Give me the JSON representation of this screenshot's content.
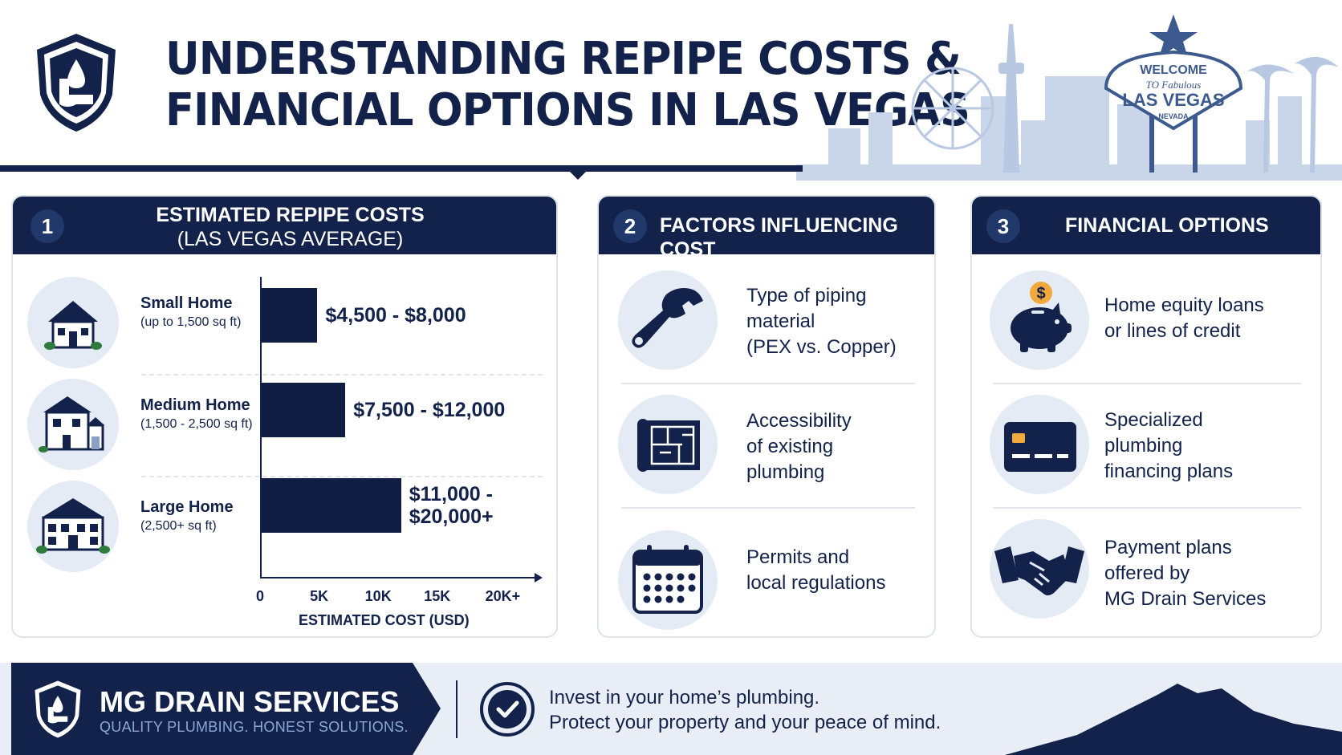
{
  "header": {
    "title_line1": "UNDERSTANDING REPIPE COSTS &",
    "title_line2": "FINANCIAL OPTIONS IN LAS VEGAS",
    "sign": {
      "welcome": "WELCOME",
      "to_fabulous": "TO Fabulous",
      "city": "LAS VEGAS",
      "state": "NEVADA"
    }
  },
  "costs": {
    "number": "1",
    "title_line1": "ESTIMATED REPIPE COSTS",
    "title_line2": "(LAS VEGAS AVERAGE)",
    "homes": [
      {
        "name": "Small Home",
        "size": "(up to 1,500 sq ft)",
        "label_line1": "$4,500 - $8,000",
        "label_line2": "",
        "range": [
          4500,
          8000
        ]
      },
      {
        "name": "Medium Home",
        "size": "(1,500 - 2,500 sq ft)",
        "label_line1": "$7,500 - $12,000",
        "label_line2": "",
        "range": [
          7500,
          12000
        ]
      },
      {
        "name": "Large Home",
        "size": "(2,500+ sq ft)",
        "label_line1": "$11,000 -",
        "label_line2": "$20,000+",
        "range": [
          11000,
          20000
        ]
      }
    ],
    "ticks": [
      "0",
      "5K",
      "10K",
      "15K",
      "20K+"
    ],
    "xlabel": "ESTIMATED COST (USD)"
  },
  "chart_data": {
    "type": "bar",
    "categories": [
      "Small Home",
      "Medium Home",
      "Large Home"
    ],
    "values": [
      8000,
      12000,
      20000
    ],
    "ranges": [
      [
        4500,
        8000
      ],
      [
        7500,
        12000
      ],
      [
        11000,
        20000
      ]
    ],
    "title": "ESTIMATED REPIPE COSTS (LAS VEGAS AVERAGE)",
    "xlabel": "ESTIMATED COST (USD)",
    "ylabel": "",
    "xlim": [
      0,
      20000
    ],
    "orientation": "horizontal"
  },
  "factors": {
    "number": "2",
    "title": "FACTORS INFLUENCING COST",
    "items": [
      {
        "icon": "wrench-icon",
        "lines": [
          "Type of piping",
          "material",
          "(PEX vs. Copper)"
        ]
      },
      {
        "icon": "blueprint-icon",
        "lines": [
          "Accessibility",
          "of existing",
          "plumbing"
        ]
      },
      {
        "icon": "calendar-icon",
        "lines": [
          "Permits and",
          "local regulations"
        ]
      }
    ]
  },
  "financial": {
    "number": "3",
    "title": "FINANCIAL OPTIONS",
    "items": [
      {
        "icon": "piggy-bank-icon",
        "lines": [
          "Home equity loans",
          "or lines of credit"
        ]
      },
      {
        "icon": "credit-card-icon",
        "lines": [
          "Specialized",
          "plumbing",
          "financing plans"
        ]
      },
      {
        "icon": "handshake-icon",
        "lines": [
          "Payment plans",
          "offered by",
          "MG Drain Services"
        ]
      }
    ]
  },
  "footer": {
    "company": "MG DRAIN SERVICES",
    "tagline": "QUALITY PLUMBING. HONEST SOLUTIONS.",
    "message_line1": "Invest in your home’s plumbing.",
    "message_line2": "Protect your property and your peace of mind."
  },
  "colors": {
    "navy": "#13224a",
    "bar": "#0f1d42",
    "circle_bg": "#e4ebf5",
    "skyline": "#b9c8e2"
  }
}
